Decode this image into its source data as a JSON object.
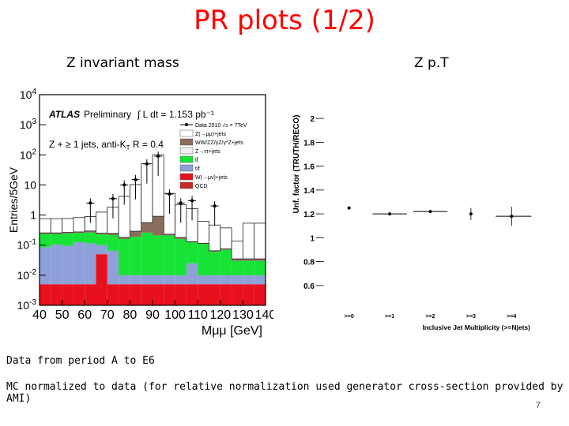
{
  "slide": {
    "title": "PR plots (1/2)",
    "left_caption": "Z invariant mass",
    "right_caption": "Z p.T",
    "notes": [
      "Data from period A to E6",
      "MC normalized to data (for relative normalization used generator cross-section provided by AMI)"
    ],
    "page_number": "7"
  },
  "chart_data": [
    {
      "type": "bar",
      "stacked": true,
      "log_y": true,
      "ylabel": "Entries/5GeV",
      "xlabel": "Mμμ [GeV]",
      "xlim": [
        40,
        140
      ],
      "ylim": [
        0.001,
        10000
      ],
      "x_ticks": [
        "40",
        "50",
        "60",
        "70",
        "80",
        "90",
        "100",
        "110",
        "120",
        "130",
        "140"
      ],
      "y_ticks": [
        "10^4",
        "10^3",
        "10^2",
        "10",
        "1",
        "10^-1",
        "10^-2",
        "10^-3"
      ],
      "annotations": {
        "atlas": "ATLAS",
        "preliminary": "Preliminary",
        "lumi": "∫ L dt = 1.153 pb⁻¹",
        "selection": "Z + ≥ 1 jets, anti-K",
        "selection_sub": "T",
        "selection_tail": " R = 0.4"
      },
      "legend_position": "top-right",
      "legend": [
        {
          "label": "Data 2010 √s = 7TeV",
          "color": "#000000",
          "marker": "point"
        },
        {
          "label": "Z(→μμ)+jets",
          "color": "#ffffff"
        },
        {
          "label": "WW/ZZ/γZ/γ*Z+jets",
          "color": "#8b6d5c"
        },
        {
          "label": "Z→ττ+jets",
          "color": "#f0f0f0"
        },
        {
          "label": "tt̄",
          "color": "#17e334"
        },
        {
          "label": "t/t̄",
          "color": "#8ea0d8"
        },
        {
          "label": "W(→μν)+jets",
          "color": "#e8101c"
        },
        {
          "label": "QCD",
          "color": "#c62828"
        }
      ],
      "bin_edges": [
        40,
        45,
        50,
        55,
        60,
        65,
        70,
        75,
        80,
        85,
        90,
        95,
        100,
        105,
        110,
        115,
        120,
        125,
        130,
        135,
        140
      ],
      "series": [
        {
          "name": "W(→μν)+jets",
          "color": "#e8101c",
          "values": [
            0.005,
            0.005,
            0.005,
            0.005,
            0.005,
            0.05,
            0.005,
            0.005,
            0.005,
            0.005,
            0.005,
            0.005,
            0.005,
            0.005,
            0.005,
            0.005,
            0.005,
            0.005,
            0.005,
            0.005
          ]
        },
        {
          "name": "t/t̄",
          "color": "#8ea0d8",
          "values": [
            0.08,
            0.1,
            0.09,
            0.12,
            0.11,
            0.05,
            0.06,
            0.005,
            0.005,
            0.005,
            0.005,
            0.005,
            0.005,
            0.02,
            0.005,
            0.005,
            0.005,
            0.005,
            0.005,
            0.005
          ]
        },
        {
          "name": "tt̄",
          "color": "#17e334",
          "values": [
            0.15,
            0.13,
            0.15,
            0.13,
            0.15,
            0.13,
            0.15,
            0.15,
            0.18,
            0.25,
            0.2,
            0.2,
            0.15,
            0.1,
            0.1,
            0.05,
            0.06,
            0.02,
            0.02,
            0.02
          ]
        },
        {
          "name": "WW/ZZ/γZ/γ*Z+jets",
          "color": "#8b6d5c",
          "values": [
            0.02,
            0.02,
            0.02,
            0.02,
            0.03,
            0.02,
            0.03,
            0.02,
            0.1,
            0.3,
            0.7,
            0.02,
            0.02,
            0.005,
            0.005,
            0.005,
            0.005,
            0.005,
            0.005,
            0.005
          ]
        },
        {
          "name": "Z(→μμ)+jets",
          "color": "#ffffff",
          "values": [
            0.5,
            0.5,
            0.5,
            0.55,
            0.6,
            1.0,
            1.6,
            4.0,
            10,
            50,
            100,
            5,
            2,
            1.5,
            0.5,
            0.4,
            0.3,
            0.1,
            0.5,
            0.5
          ]
        }
      ],
      "data_points": [
        {
          "x": 62.5,
          "y": 2.5
        },
        {
          "x": 72.5,
          "y": 3.5
        },
        {
          "x": 77.5,
          "y": 10
        },
        {
          "x": 82.5,
          "y": 15
        },
        {
          "x": 87.5,
          "y": 50
        },
        {
          "x": 92.5,
          "y": 90
        },
        {
          "x": 97.5,
          "y": 5
        },
        {
          "x": 102.5,
          "y": 2.5
        },
        {
          "x": 107.5,
          "y": 3
        },
        {
          "x": 117.5,
          "y": 2
        }
      ]
    },
    {
      "type": "scatter",
      "ylabel": "Unf. factor (TRUTH/RECO)",
      "xlabel": "Inclusive Jet Multiplicity (>=Njets)",
      "ylim": [
        0.5,
        2.1
      ],
      "y_ticks": [
        "2",
        "1.8",
        "1.6",
        "1.4",
        "1.2",
        "1",
        "0.8",
        "0.6"
      ],
      "categories": [
        ">=0",
        ">=1",
        ">=2",
        ">=3",
        ">=4"
      ],
      "values": [
        1.25,
        1.2,
        1.22,
        1.2,
        1.18
      ],
      "errors": [
        0.0,
        0.0,
        0.0,
        0.05,
        0.08
      ]
    }
  ]
}
